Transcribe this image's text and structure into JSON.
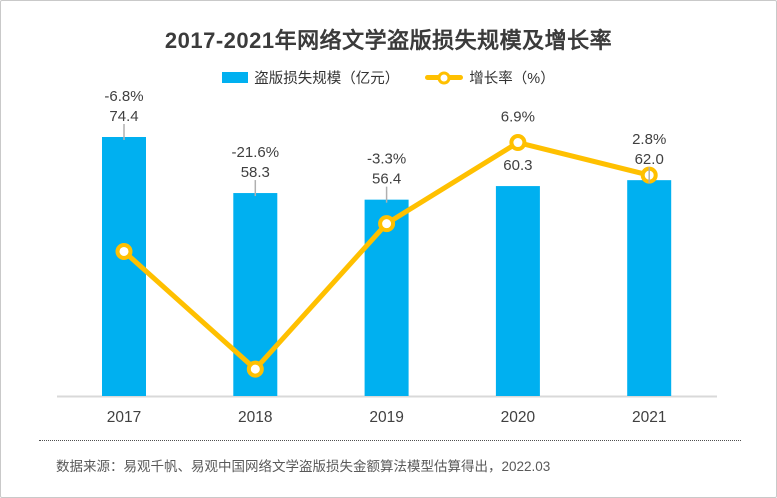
{
  "chart_data": {
    "type": "bar",
    "subtype": "bar-line-combo",
    "title": "2017-2021年网络文学盗版损失规模及增长率",
    "categories": [
      "2017",
      "2018",
      "2019",
      "2020",
      "2021"
    ],
    "series": [
      {
        "name": "盗版损失规模（亿元）",
        "type": "bar",
        "color": "#00B0F0",
        "values": [
          74.4,
          58.3,
          56.4,
          60.3,
          62.0
        ],
        "labels": [
          "74.4",
          "58.3",
          "56.4",
          "60.3",
          "62.0"
        ]
      },
      {
        "name": "增长率（%）",
        "type": "line",
        "color": "#FFC000",
        "marker": "circle-white-fill",
        "values": [
          -6.8,
          -21.6,
          -3.3,
          6.9,
          2.8
        ],
        "labels": [
          "-6.8%",
          "-21.6%",
          "-3.3%",
          "6.9%",
          "2.8%"
        ]
      }
    ],
    "legend_position": "top",
    "grid": false,
    "axes_visible": false,
    "axis_color": "#D9D9D9",
    "label_color": "#404040",
    "bar_axis_range": [
      0,
      86
    ],
    "line_axis_range": [
      -25,
      12.8
    ]
  },
  "source_note": "数据来源：易观千帆、易观中国网络文学盗版损失金额算法模型估算得出，2022.03"
}
